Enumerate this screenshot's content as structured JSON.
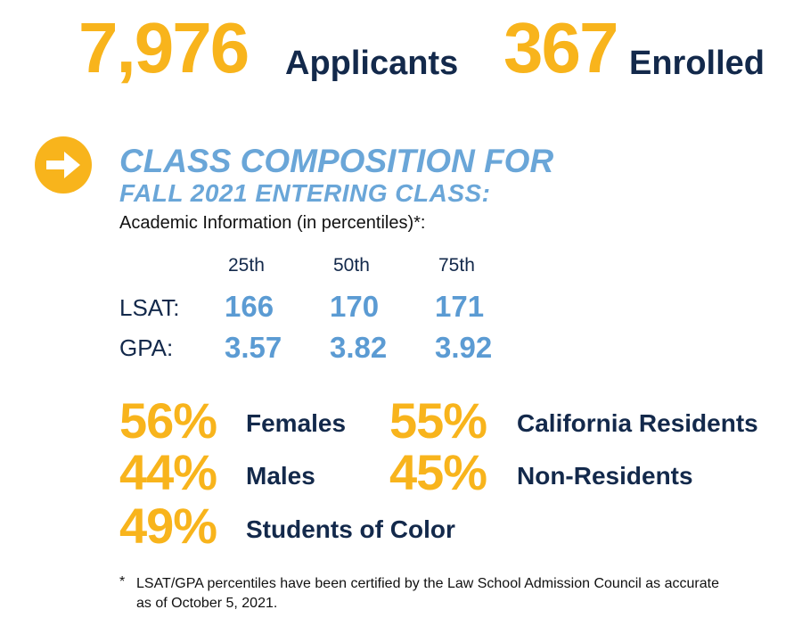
{
  "header": {
    "applicants_number": "7,976",
    "applicants_label": "Applicants",
    "enrolled_number": "367",
    "enrolled_label": "Enrolled"
  },
  "composition": {
    "icon": "arrow-right-circle-icon",
    "heading_line1": "CLASS COMPOSITION FOR",
    "heading_line2": "FALL 2021 ENTERING CLASS:",
    "academic_label": "Academic Information (in percentiles)*:"
  },
  "percentiles": {
    "columns": [
      "25th",
      "50th",
      "75th"
    ],
    "rows": [
      {
        "label": "LSAT:",
        "values": [
          "166",
          "170",
          "171"
        ]
      },
      {
        "label": "GPA:",
        "values": [
          "3.57",
          "3.82",
          "3.92"
        ]
      }
    ]
  },
  "demographics": [
    {
      "percent": "56%",
      "label": "Females"
    },
    {
      "percent": "44%",
      "label": "Males"
    },
    {
      "percent": "49%",
      "label": "Students of Color"
    },
    {
      "percent": "55%",
      "label": "California Residents"
    },
    {
      "percent": "45%",
      "label": "Non-Residents"
    }
  ],
  "footnote": {
    "mark": "*",
    "line1": "LSAT/GPA percentiles have been certified by the Law School Admission Council as accurate",
    "line2": "as of October 5, 2021."
  },
  "colors": {
    "gold": "#f8b41c",
    "navy": "#13294b",
    "light_blue": "#6aa6d8"
  }
}
